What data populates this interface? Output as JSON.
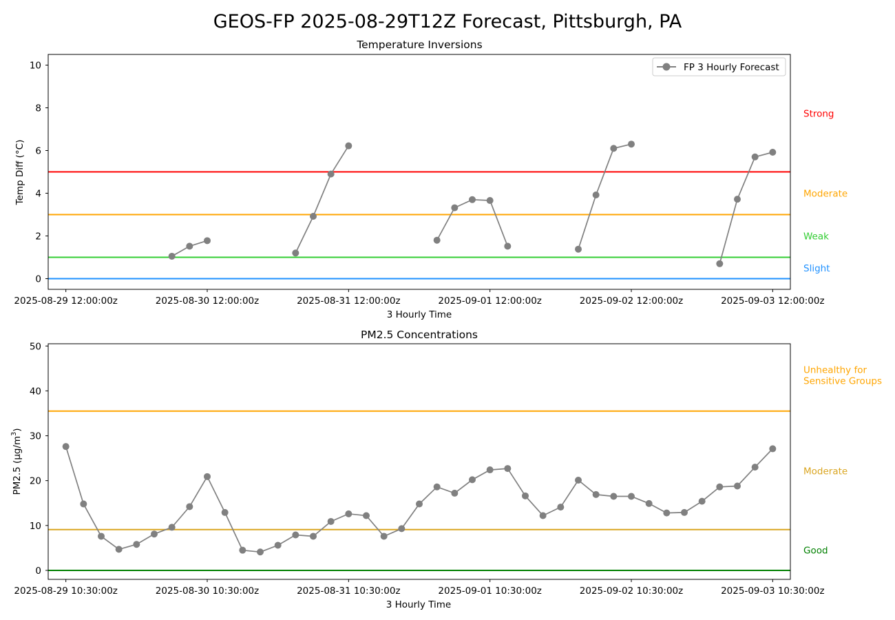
{
  "title": "GEOS-FP 2025-08-29T12Z Forecast, Pittsburgh, PA",
  "chart_data": [
    {
      "type": "line",
      "title": "Temperature Inversions",
      "xlabel": "3 Hourly Time",
      "ylabel": "Temp Diff (°C)",
      "ylim": [
        -0.5,
        10.5
      ],
      "yticks": [
        0,
        2,
        4,
        6,
        8,
        10
      ],
      "xlim": [
        -0.125,
        5.125
      ],
      "xticks": [
        {
          "at": 0,
          "label": "2025-08-29 12:00:00z"
        },
        {
          "at": 1,
          "label": "2025-08-30 12:00:00z"
        },
        {
          "at": 2,
          "label": "2025-08-31 12:00:00z"
        },
        {
          "at": 3,
          "label": "2025-09-01 12:00:00z"
        },
        {
          "at": 4,
          "label": "2025-09-02 12:00:00z"
        },
        {
          "at": 5,
          "label": "2025-09-03 12:00:00z"
        }
      ],
      "legend": {
        "label": "FP 3 Hourly Forecast",
        "placement": "top-right"
      },
      "series_color": "#808080",
      "segments": [
        [
          [
            0.75,
            1.05
          ],
          [
            0.875,
            1.52
          ],
          [
            1.0,
            1.78
          ]
        ],
        [
          [
            1.625,
            1.2
          ],
          [
            1.75,
            2.92
          ],
          [
            1.875,
            4.9
          ],
          [
            2.0,
            6.22
          ]
        ],
        [
          [
            2.625,
            1.8
          ],
          [
            2.75,
            3.32
          ],
          [
            2.875,
            3.7
          ],
          [
            3.0,
            3.66
          ],
          [
            3.125,
            1.52
          ]
        ],
        [
          [
            3.625,
            1.38
          ],
          [
            3.75,
            3.92
          ],
          [
            3.875,
            6.1
          ],
          [
            4.0,
            6.3
          ]
        ],
        [
          [
            4.625,
            0.7
          ],
          [
            4.75,
            3.72
          ],
          [
            4.875,
            5.7
          ],
          [
            5.0,
            5.92
          ]
        ]
      ],
      "thresholds": [
        {
          "label": "Slight",
          "value": 0,
          "color": "#1e90ff",
          "label_y": 0.5
        },
        {
          "label": "Weak",
          "value": 1,
          "color": "#32cd32",
          "label_y": 2.0
        },
        {
          "label": "Moderate",
          "value": 3,
          "color": "#ffa500",
          "label_y": 4.0
        },
        {
          "label": "Strong",
          "value": 5,
          "color": "#ff0000",
          "label_y": 7.75
        }
      ]
    },
    {
      "type": "line",
      "title": "PM2.5 Concentrations",
      "xlabel": "3 Hourly Time",
      "ylabel_main": "PM2.5 (µg/m",
      "ylabel_sup": "3",
      "ylabel_close": ")",
      "ylim": [
        -2,
        50.5
      ],
      "yticks": [
        0,
        10,
        20,
        30,
        40,
        50
      ],
      "xlim": [
        -0.125,
        5.125
      ],
      "xticks": [
        {
          "at": 0,
          "label": "2025-08-29 10:30:00z"
        },
        {
          "at": 1,
          "label": "2025-08-30 10:30:00z"
        },
        {
          "at": 2,
          "label": "2025-08-31 10:30:00z"
        },
        {
          "at": 3,
          "label": "2025-09-01 10:30:00z"
        },
        {
          "at": 4,
          "label": "2025-09-02 10:30:00z"
        },
        {
          "at": 5,
          "label": "2025-09-03 10:30:00z"
        }
      ],
      "series_color": "#808080",
      "values": [
        27.6,
        14.8,
        7.6,
        4.7,
        5.8,
        8.1,
        9.6,
        14.2,
        20.9,
        12.9,
        4.5,
        4.1,
        5.6,
        7.9,
        7.6,
        10.9,
        12.6,
        12.2,
        7.6,
        9.3,
        14.8,
        18.6,
        17.2,
        20.2,
        22.4,
        22.7,
        16.6,
        12.2,
        14.1,
        20.1,
        16.9,
        16.5,
        16.5,
        14.9,
        12.8,
        12.9,
        15.4,
        18.6,
        18.8,
        23.0,
        27.1
      ],
      "x_step": 0.125,
      "thresholds": [
        {
          "label": "Good",
          "value": 0,
          "color": "#008000",
          "label_y": 4.5
        },
        {
          "label": "Moderate",
          "value": 9.1,
          "color": "#daa520",
          "label_y": 22.2
        },
        {
          "label_lines": [
            "Unhealthy for",
            "Sensitive Groups"
          ],
          "value": 35.5,
          "color": "#ffa500",
          "label_y": 43.5
        }
      ]
    }
  ]
}
